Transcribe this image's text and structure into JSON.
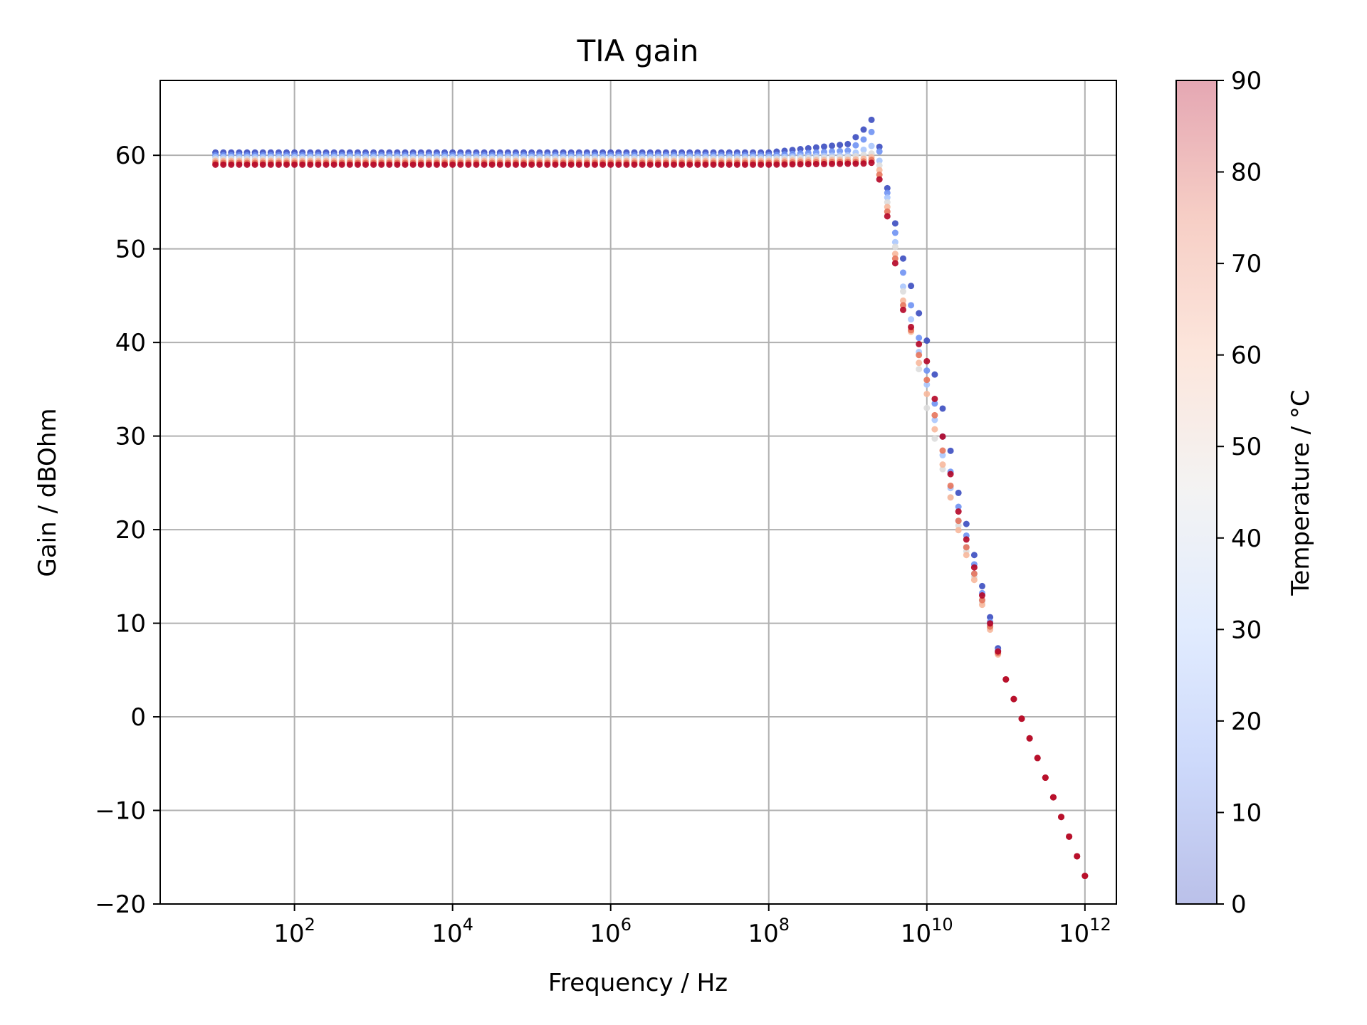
{
  "chart_data": {
    "type": "scatter",
    "title": "TIA gain",
    "xlabel": "Frequency / Hz",
    "ylabel": "Gain / dBOhm",
    "xscale": "log",
    "xlim": [
      2.0,
      2500000000000.0
    ],
    "ylim": [
      -20,
      68
    ],
    "grid": true,
    "x_ticks": [
      {
        "base": "10",
        "exp": "2",
        "value": 100.0
      },
      {
        "base": "10",
        "exp": "4",
        "value": 10000.0
      },
      {
        "base": "10",
        "exp": "6",
        "value": 1000000.0
      },
      {
        "base": "10",
        "exp": "8",
        "value": 100000000.0
      },
      {
        "base": "10",
        "exp": "10",
        "value": 10000000000.0
      },
      {
        "base": "10",
        "exp": "12",
        "value": 1000000000000.0
      }
    ],
    "y_ticks": [
      {
        "label": "60",
        "value": 60
      },
      {
        "label": "50",
        "value": 50
      },
      {
        "label": "40",
        "value": 40
      },
      {
        "label": "30",
        "value": 30
      },
      {
        "label": "20",
        "value": 20
      },
      {
        "label": "10",
        "value": 10
      },
      {
        "label": "0",
        "value": 0
      },
      {
        "label": "−10",
        "value": -10
      },
      {
        "label": "−20",
        "value": -20
      }
    ],
    "colorbar": {
      "label": "Temperature / °C",
      "colormap": "coolwarm",
      "alpha": 0.35,
      "range": [
        0,
        90
      ],
      "ticks": [
        "0",
        "10",
        "20",
        "30",
        "40",
        "50",
        "60",
        "70",
        "80",
        "90"
      ],
      "gradient_colors": [
        "#3b4cc0",
        "#6f92f3",
        "#aac7fd",
        "#dddddd",
        "#f7b89c",
        "#e7745b",
        "#b40426"
      ]
    },
    "series": [
      {
        "temperature": 0,
        "color": "#3b4cc0",
        "x": [
          10,
          100,
          10000.0,
          1000000.0,
          100000000.0,
          1000000000.0,
          1500000000.0,
          2000000000.0,
          2500000000.0,
          3160000000.0,
          5000000000.0,
          10000000000.0,
          15800000000.0,
          25000000000.0,
          100000000000.0,
          1000000000000.0
        ],
        "y": [
          60.3,
          60.3,
          60.3,
          60.3,
          60.3,
          61.2,
          62.5,
          63.8,
          61.0,
          56.5,
          49.0,
          40.2,
          33.0,
          24.0,
          4.0,
          -17.0
        ]
      },
      {
        "temperature": 15,
        "color": "#6f92f3",
        "x": [
          10,
          100,
          10000.0,
          1000000.0,
          100000000.0,
          1000000000.0,
          1500000000.0,
          2000000000.0,
          2500000000.0,
          3160000000.0,
          5000000000.0,
          10000000000.0,
          15800000000.0,
          25000000000.0,
          100000000000.0,
          1000000000000.0
        ],
        "y": [
          60.0,
          60.0,
          60.0,
          60.0,
          60.0,
          60.5,
          61.5,
          62.5,
          60.5,
          56.0,
          47.5,
          37.0,
          30.0,
          22.5,
          4.0,
          -17.0
        ]
      },
      {
        "temperature": 30,
        "color": "#aac7fd",
        "x": [
          10,
          100,
          10000.0,
          1000000.0,
          100000000.0,
          1000000000.0,
          1500000000.0,
          2000000000.0,
          2500000000.0,
          3160000000.0,
          5000000000.0,
          10000000000.0,
          15800000000.0,
          25000000000.0,
          100000000000.0,
          1000000000000.0
        ],
        "y": [
          59.8,
          59.8,
          59.8,
          59.8,
          59.8,
          60.0,
          60.5,
          61.0,
          59.5,
          55.5,
          46.0,
          35.5,
          28.0,
          21.0,
          4.0,
          -17.0
        ]
      },
      {
        "temperature": 45,
        "color": "#dddddd",
        "x": [
          10,
          100,
          10000.0,
          1000000.0,
          100000000.0,
          1000000000.0,
          1500000000.0,
          2000000000.0,
          2500000000.0,
          3160000000.0,
          5000000000.0,
          10000000000.0,
          15800000000.0,
          25000000000.0,
          100000000000.0,
          1000000000000.0
        ],
        "y": [
          59.6,
          59.6,
          59.6,
          59.6,
          59.6,
          59.8,
          60.0,
          60.2,
          59.0,
          55.0,
          45.5,
          33.0,
          26.5,
          20.5,
          4.0,
          -17.0
        ]
      },
      {
        "temperature": 60,
        "color": "#f7b89c",
        "x": [
          10,
          100,
          10000.0,
          1000000.0,
          100000000.0,
          1000000000.0,
          1500000000.0,
          2000000000.0,
          2500000000.0,
          3160000000.0,
          5000000000.0,
          10000000000.0,
          15800000000.0,
          25000000000.0,
          100000000000.0,
          1000000000000.0
        ],
        "y": [
          59.4,
          59.4,
          59.4,
          59.4,
          59.4,
          59.5,
          59.6,
          59.8,
          58.5,
          54.5,
          44.5,
          34.5,
          27.0,
          20.0,
          4.0,
          -17.0
        ]
      },
      {
        "temperature": 75,
        "color": "#e7745b",
        "x": [
          10,
          100,
          10000.0,
          1000000.0,
          100000000.0,
          1000000000.0,
          1500000000.0,
          2000000000.0,
          2500000000.0,
          3160000000.0,
          5000000000.0,
          10000000000.0,
          15800000000.0,
          25000000000.0,
          100000000000.0,
          1000000000000.0
        ],
        "y": [
          59.2,
          59.2,
          59.2,
          59.2,
          59.2,
          59.3,
          59.3,
          59.5,
          58.0,
          54.0,
          44.0,
          36.0,
          28.5,
          21.0,
          4.0,
          -17.0
        ]
      },
      {
        "temperature": 90,
        "color": "#b40426",
        "x": [
          10,
          100,
          10000.0,
          1000000.0,
          100000000.0,
          1000000000.0,
          1500000000.0,
          2000000000.0,
          2500000000.0,
          3160000000.0,
          5000000000.0,
          10000000000.0,
          15800000000.0,
          25000000000.0,
          100000000000.0,
          1000000000000.0
        ],
        "y": [
          59.0,
          59.0,
          59.0,
          59.0,
          59.0,
          59.1,
          59.1,
          59.2,
          57.5,
          53.5,
          43.5,
          38.0,
          30.0,
          22.0,
          4.0,
          -17.0
        ]
      }
    ]
  }
}
